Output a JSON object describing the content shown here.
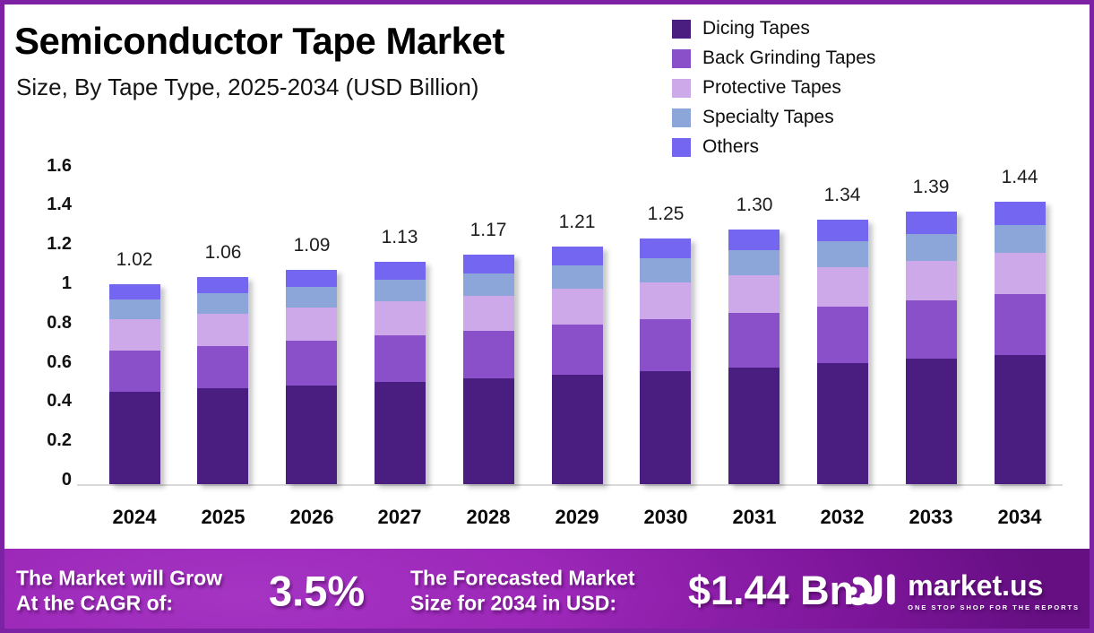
{
  "page": {
    "border_color": "#7d22a5",
    "background": "#ffffff"
  },
  "header": {
    "title": "Semiconductor Tape  Market",
    "subtitle": "Size, By Tape Type, 2025-2034 (USD Billion)"
  },
  "legend": {
    "items": [
      {
        "label": "Dicing Tapes",
        "color": "#4a1d80"
      },
      {
        "label": "Back Grinding Tapes",
        "color": "#8a50c9"
      },
      {
        "label": "Protective Tapes",
        "color": "#cda9ea"
      },
      {
        "label": "Specialty Tapes",
        "color": "#8ca6d9"
      },
      {
        "label": "Others",
        "color": "#7466f0"
      }
    ]
  },
  "chart_data": {
    "type": "bar",
    "stacked": true,
    "title": "Semiconductor Tape Market",
    "subtitle": "Size, By Tape Type, 2025-2034 (USD Billion)",
    "xlabel": "",
    "ylabel": "",
    "ylim": [
      0,
      1.6
    ],
    "ytick_step": 0.2,
    "yticks": [
      "1.6",
      "1.4",
      "1.2",
      "1",
      "0.8",
      "0.6",
      "0.4",
      "0.2",
      "0"
    ],
    "grid": false,
    "legend_position": "top-right",
    "categories": [
      "2024",
      "2025",
      "2026",
      "2027",
      "2028",
      "2029",
      "2030",
      "2031",
      "2032",
      "2033",
      "2034"
    ],
    "series": [
      {
        "name": "Dicing Tapes",
        "color": "#4a1d80",
        "values": [
          0.47,
          0.486,
          0.503,
          0.52,
          0.538,
          0.557,
          0.576,
          0.596,
          0.617,
          0.638,
          0.66
        ]
      },
      {
        "name": "Back Grinding Tapes",
        "color": "#8a50c9",
        "values": [
          0.21,
          0.218,
          0.227,
          0.236,
          0.245,
          0.255,
          0.265,
          0.276,
          0.287,
          0.298,
          0.31
        ]
      },
      {
        "name": "Protective Tapes",
        "color": "#cda9ea",
        "values": [
          0.16,
          0.164,
          0.169,
          0.174,
          0.178,
          0.183,
          0.188,
          0.194,
          0.199,
          0.204,
          0.21
        ]
      },
      {
        "name": "Specialty Tapes",
        "color": "#8ca6d9",
        "values": [
          0.1,
          0.103,
          0.107,
          0.111,
          0.114,
          0.118,
          0.122,
          0.126,
          0.131,
          0.135,
          0.14
        ]
      },
      {
        "name": "Others",
        "color": "#7466f0",
        "values": [
          0.08,
          0.083,
          0.087,
          0.09,
          0.094,
          0.098,
          0.102,
          0.106,
          0.111,
          0.115,
          0.12
        ]
      }
    ],
    "totals": [
      1.02,
      1.06,
      1.09,
      1.13,
      1.17,
      1.21,
      1.25,
      1.3,
      1.34,
      1.39,
      1.44
    ],
    "total_labels": [
      "1.02",
      "1.06",
      "1.09",
      "1.13",
      "1.17",
      "1.21",
      "1.25",
      "1.30",
      "1.34",
      "1.39",
      "1.44"
    ]
  },
  "footer": {
    "cagr_label_line1": "The Market will Grow",
    "cagr_label_line2": "At the CAGR of:",
    "cagr_value": "3.5%",
    "forecast_label_line1": "The Forecasted Market",
    "forecast_label_line2": "Size for 2034 in USD:",
    "forecast_value": "$1.44 Bn",
    "logo": {
      "brand": "market.us",
      "tagline": "ONE STOP SHOP FOR THE REPORTS"
    }
  }
}
